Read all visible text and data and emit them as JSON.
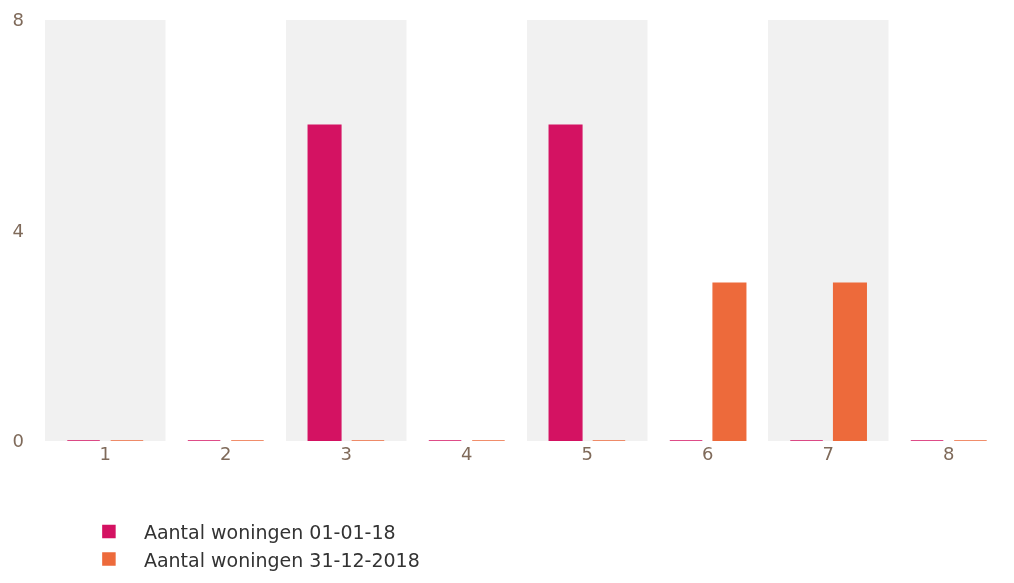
{
  "chart_data": {
    "type": "bar",
    "categories": [
      "1",
      "2",
      "3",
      "4",
      "5",
      "6",
      "7",
      "8"
    ],
    "series": [
      {
        "name": "Aantal woningen 01-01-18",
        "color": "#d41262",
        "values": [
          0,
          0,
          6,
          0,
          6,
          0,
          0,
          0
        ]
      },
      {
        "name": "Aantal woningen 31-12-2018",
        "color": "#ed6a3b",
        "values": [
          0,
          0,
          0,
          0,
          0,
          3,
          3,
          0
        ]
      }
    ],
    "ylim": [
      0,
      8
    ],
    "yticks": [
      0,
      4,
      8
    ],
    "grid": false,
    "legend": "bottom",
    "bands": [
      {
        "axis": "x",
        "from": "1",
        "to": "1",
        "color": "#f1f1f1"
      },
      {
        "axis": "x",
        "from": "3",
        "to": "3",
        "color": "#f1f1f1"
      },
      {
        "axis": "x",
        "from": "5",
        "to": "5",
        "color": "#f1f1f1"
      },
      {
        "axis": "x",
        "from": "7",
        "to": "7",
        "color": "#f1f1f1"
      }
    ]
  }
}
